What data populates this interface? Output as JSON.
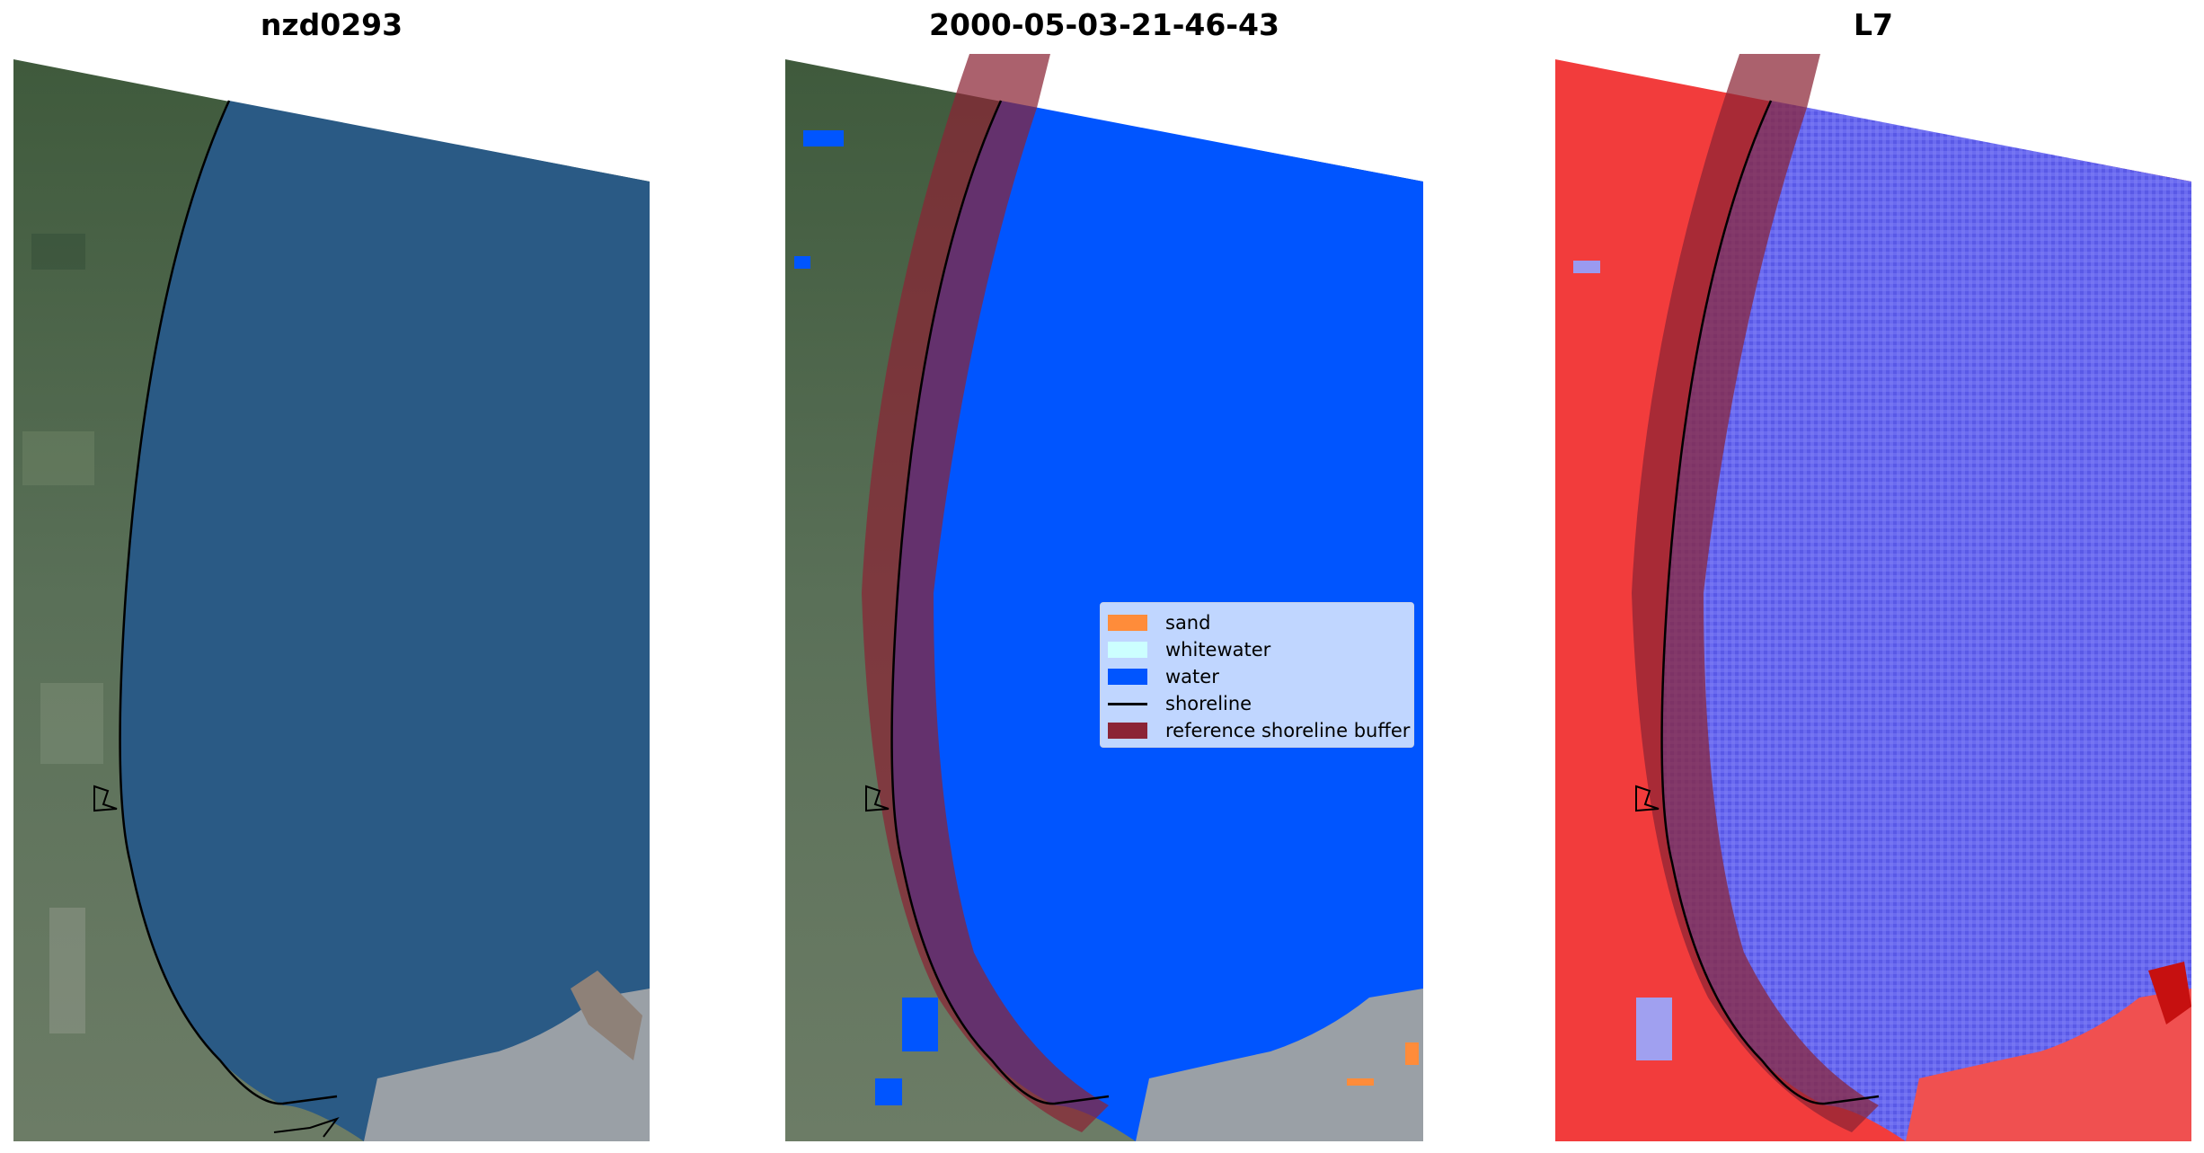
{
  "panels": [
    {
      "title": "nzd0293"
    },
    {
      "title": "2000-05-03-21-46-43"
    },
    {
      "title": "L7"
    }
  ],
  "legend": {
    "items": [
      {
        "label": "sand",
        "color": "#ff8c3a"
      },
      {
        "label": "whitewater",
        "color": "#ccffff"
      },
      {
        "label": "water",
        "color": "#0055ff"
      },
      {
        "label": "shoreline",
        "color": "#000000"
      },
      {
        "label": "reference shoreline buffer",
        "color": "#8b2435"
      }
    ]
  },
  "colors": {
    "sea_rgb": "#2a5a85",
    "land_rgb": "#4e6b4f",
    "water_class": "#0055ff",
    "buffer": "#8b2435",
    "index_water": "#6060e8",
    "index_land": "#f23c3c"
  }
}
